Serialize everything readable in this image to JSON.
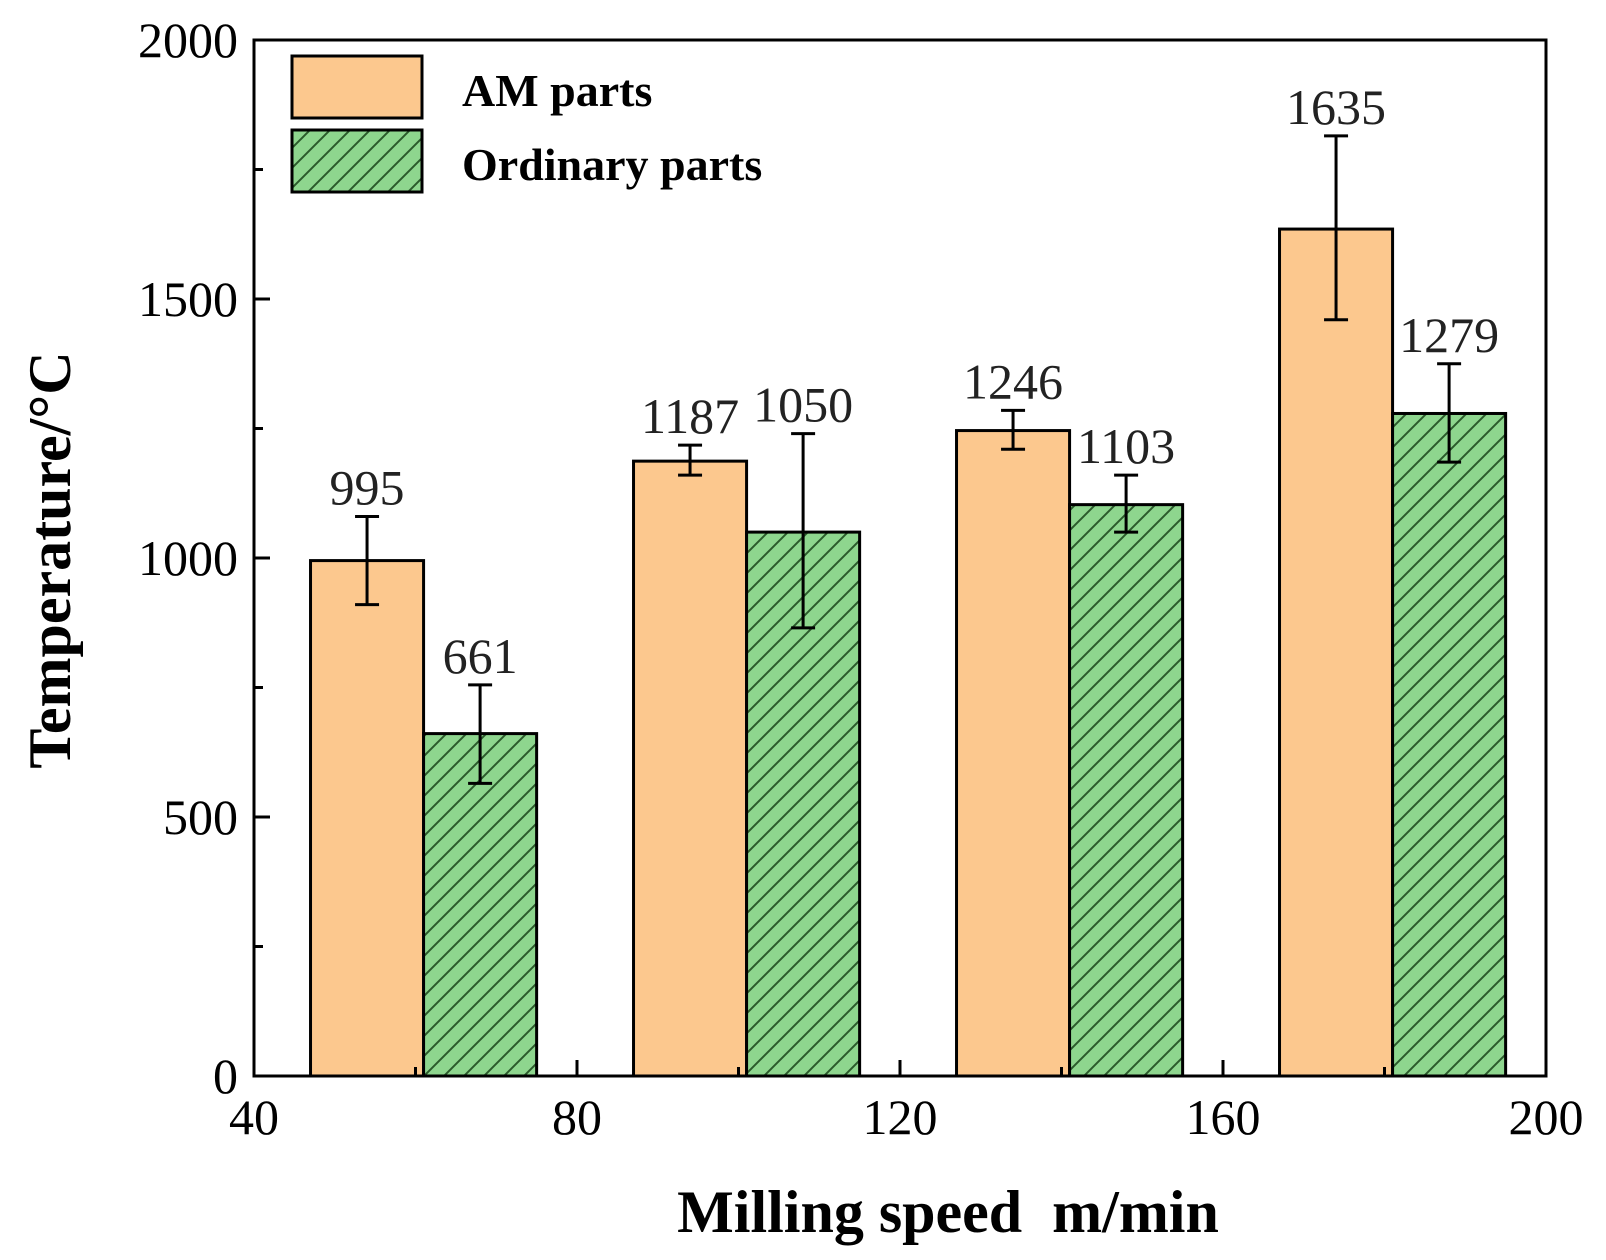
{
  "chart_data": {
    "type": "bar",
    "xlabel": "Milling speed  m/min",
    "ylabel": "Temperature/°C",
    "xlim": [
      40,
      200
    ],
    "ylim": [
      0,
      2000
    ],
    "x_ticks": [
      40,
      80,
      120,
      160,
      200
    ],
    "y_ticks": [
      0,
      500,
      1000,
      1500,
      2000
    ],
    "grid": false,
    "legend_position": "top-left",
    "series": [
      {
        "name": "AM parts",
        "color": "#fcc88e",
        "pattern": "solid",
        "bars": [
          {
            "x_start": 47,
            "x_end": 61,
            "value": 995,
            "err_low": 910,
            "err_high": 1080,
            "label": "995"
          },
          {
            "x_start": 87,
            "x_end": 101,
            "value": 1187,
            "err_low": 1160,
            "err_high": 1218,
            "label": "1187"
          },
          {
            "x_start": 127,
            "x_end": 141,
            "value": 1246,
            "err_low": 1210,
            "err_high": 1285,
            "label": "1246"
          },
          {
            "x_start": 167,
            "x_end": 181,
            "value": 1635,
            "err_low": 1460,
            "err_high": 1815,
            "label": "1635"
          }
        ]
      },
      {
        "name": "Ordinary parts",
        "color": "#8ed68e",
        "pattern": "diagonal-hatch",
        "bars": [
          {
            "x_start": 61,
            "x_end": 75,
            "value": 661,
            "err_low": 565,
            "err_high": 755,
            "label": "661"
          },
          {
            "x_start": 101,
            "x_end": 115,
            "value": 1050,
            "err_low": 865,
            "err_high": 1240,
            "label": "1050"
          },
          {
            "x_start": 141,
            "x_end": 155,
            "value": 1103,
            "err_low": 1050,
            "err_high": 1160,
            "label": "1103"
          },
          {
            "x_start": 181,
            "x_end": 195,
            "value": 1279,
            "err_low": 1185,
            "err_high": 1375,
            "label": "1279"
          }
        ]
      }
    ]
  }
}
